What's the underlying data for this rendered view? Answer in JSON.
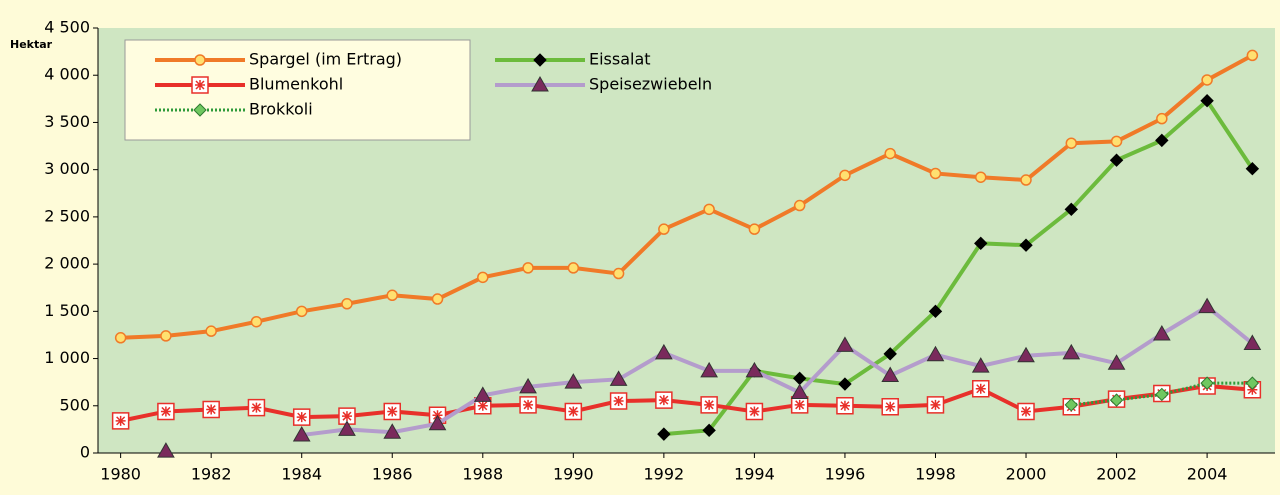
{
  "chart_data": {
    "type": "line",
    "ylabel": "Hektar",
    "x": [
      1980,
      1981,
      1982,
      1983,
      1984,
      1985,
      1986,
      1987,
      1988,
      1989,
      1990,
      1991,
      1992,
      1993,
      1994,
      1995,
      1996,
      1997,
      1998,
      1999,
      2000,
      2001,
      2002,
      2003,
      2004,
      2005
    ],
    "xlim": [
      1979.5,
      2005.5
    ],
    "xticks": [
      1980,
      1982,
      1984,
      1986,
      1988,
      1990,
      1992,
      1994,
      1996,
      1998,
      2000,
      2002,
      2004
    ],
    "ylim": [
      0,
      4500
    ],
    "yticks": [
      0,
      500,
      {
        "value": 1000,
        "label": "1 000"
      },
      {
        "value": 1500,
        "label": "1 500"
      },
      {
        "value": 2000,
        "label": "2 000"
      },
      {
        "value": 2500,
        "label": "2 500"
      },
      {
        "value": 3000,
        "label": "3 000"
      },
      {
        "value": 3500,
        "label": "3 500"
      },
      {
        "value": 4000,
        "label": "4 000"
      },
      {
        "value": 4500,
        "label": "4 500"
      }
    ],
    "grid": false,
    "legend": "top-left",
    "series": [
      {
        "name": "Spargel (im Ertrag)",
        "color": "#f07a28",
        "marker": "circle",
        "marker_color": "#ffe070",
        "line_style": "solid",
        "values": [
          1220,
          1240,
          1290,
          1390,
          1500,
          1580,
          1670,
          1630,
          1860,
          1960,
          1960,
          1900,
          2370,
          2580,
          2370,
          2620,
          2940,
          3170,
          2960,
          2920,
          2890,
          3280,
          3300,
          3540,
          3950,
          4210
        ]
      },
      {
        "name": "Eissalat",
        "color": "#6cbb3c",
        "marker": "diamond",
        "marker_color": "#000000",
        "line_style": "solid",
        "values": [
          null,
          null,
          null,
          null,
          null,
          null,
          null,
          null,
          null,
          null,
          null,
          null,
          200,
          240,
          870,
          790,
          730,
          1050,
          1500,
          2220,
          2200,
          2580,
          3100,
          3310,
          3730,
          3010
        ]
      },
      {
        "name": "Blumenkohl",
        "color": "#e8302a",
        "marker": "asterisk",
        "marker_color": "#e8302a",
        "line_style": "solid",
        "values": [
          340,
          440,
          460,
          480,
          380,
          390,
          440,
          400,
          500,
          510,
          440,
          550,
          560,
          510,
          440,
          510,
          500,
          490,
          510,
          680,
          440,
          490,
          570,
          630,
          710,
          670
        ]
      },
      {
        "name": "Speisezwiebeln",
        "color": "#b49ccc",
        "marker": "triangle",
        "marker_color": "#7a2a5c",
        "line_style": "solid",
        "values": [
          null,
          20,
          null,
          null,
          190,
          250,
          220,
          310,
          610,
          700,
          750,
          780,
          1060,
          870,
          870,
          640,
          1140,
          820,
          1040,
          920,
          1030,
          1060,
          950,
          1260,
          1550,
          1160
        ]
      },
      {
        "name": "Brokkoli",
        "color": "#2e9a3a",
        "marker": "diamond",
        "marker_color": "#70c860",
        "line_style": "dotted",
        "values": [
          null,
          null,
          null,
          null,
          null,
          null,
          null,
          null,
          null,
          null,
          null,
          null,
          null,
          null,
          null,
          null,
          null,
          null,
          null,
          null,
          null,
          510,
          560,
          620,
          740,
          740
        ]
      }
    ]
  }
}
